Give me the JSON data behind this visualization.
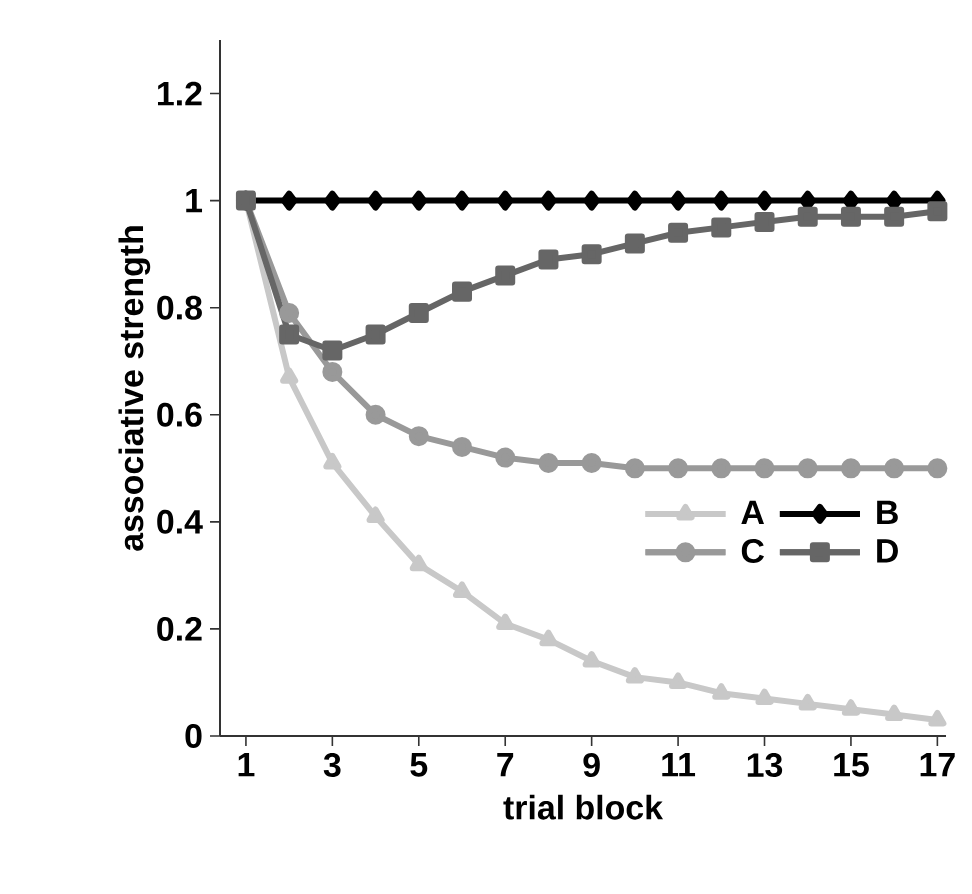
{
  "chart_data": {
    "type": "line",
    "xlabel": "trial block",
    "ylabel": "associative strength",
    "x": [
      1,
      2,
      3,
      4,
      5,
      6,
      7,
      8,
      9,
      10,
      11,
      12,
      13,
      14,
      15,
      16,
      17
    ],
    "series": [
      {
        "name": "A",
        "color": "#c8c8c8",
        "marker": "triangle",
        "values": [
          1,
          0.67,
          0.51,
          0.41,
          0.32,
          0.27,
          0.21,
          0.18,
          0.14,
          0.11,
          0.1,
          0.08,
          0.07,
          0.06,
          0.05,
          0.04,
          0.03
        ]
      },
      {
        "name": "B",
        "color": "#000000",
        "marker": "diamond",
        "values": [
          1,
          1,
          1,
          1,
          1,
          1,
          1,
          1,
          1,
          1,
          1,
          1,
          1,
          1,
          1,
          1,
          1
        ]
      },
      {
        "name": "C",
        "color": "#999999",
        "marker": "circle",
        "values": [
          1,
          0.79,
          0.68,
          0.6,
          0.56,
          0.54,
          0.52,
          0.51,
          0.51,
          0.5,
          0.5,
          0.5,
          0.5,
          0.5,
          0.5,
          0.5,
          0.5
        ]
      },
      {
        "name": "D",
        "color": "#666666",
        "marker": "square",
        "values": [
          1,
          0.75,
          0.72,
          0.75,
          0.79,
          0.83,
          0.86,
          0.89,
          0.9,
          0.92,
          0.94,
          0.95,
          0.96,
          0.97,
          0.97,
          0.97,
          0.98
        ]
      }
    ],
    "xlim": [
      0.4,
      17.2
    ],
    "ylim": [
      0,
      1.3
    ],
    "xticks": [
      1,
      3,
      5,
      7,
      9,
      11,
      13,
      15,
      17
    ],
    "yticks": [
      0,
      0.2,
      0.4,
      0.6,
      0.8,
      1,
      1.2
    ],
    "legend": "right",
    "grid": false,
    "line_style": "solid"
  }
}
